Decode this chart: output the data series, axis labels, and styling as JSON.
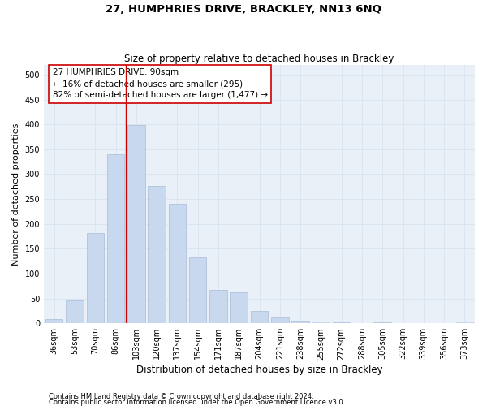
{
  "title": "27, HUMPHRIES DRIVE, BRACKLEY, NN13 6NQ",
  "subtitle": "Size of property relative to detached houses in Brackley",
  "xlabel": "Distribution of detached houses by size in Brackley",
  "ylabel": "Number of detached properties",
  "categories": [
    "36sqm",
    "53sqm",
    "70sqm",
    "86sqm",
    "103sqm",
    "120sqm",
    "137sqm",
    "154sqm",
    "171sqm",
    "187sqm",
    "204sqm",
    "221sqm",
    "238sqm",
    "255sqm",
    "272sqm",
    "288sqm",
    "305sqm",
    "322sqm",
    "339sqm",
    "356sqm",
    "373sqm"
  ],
  "values": [
    8,
    46,
    182,
    340,
    398,
    276,
    240,
    133,
    68,
    62,
    25,
    11,
    5,
    3,
    2,
    1,
    2,
    1,
    0,
    0,
    3
  ],
  "bar_color": "#c8d8ee",
  "bar_edge_color": "#a8bcd8",
  "vline_x_idx": 3,
  "vline_color": "#cc0000",
  "annotation_text_line1": "27 HUMPHRIES DRIVE: 90sqm",
  "annotation_text_line2": "← 16% of detached houses are smaller (295)",
  "annotation_text_line3": "82% of semi-detached houses are larger (1,477) →",
  "annotation_box_color": "white",
  "annotation_box_edge_color": "#cc0000",
  "ylim": [
    0,
    520
  ],
  "yticks": [
    0,
    50,
    100,
    150,
    200,
    250,
    300,
    350,
    400,
    450,
    500
  ],
  "grid_color": "#d8e4f0",
  "background_color": "#eaf0f8",
  "footer_line1": "Contains HM Land Registry data © Crown copyright and database right 2024.",
  "footer_line2": "Contains public sector information licensed under the Open Government Licence v3.0.",
  "title_fontsize": 9.5,
  "subtitle_fontsize": 8.5,
  "xlabel_fontsize": 8.5,
  "ylabel_fontsize": 8.0,
  "tick_fontsize": 7.0,
  "annotation_fontsize": 7.5,
  "footer_fontsize": 6.0
}
